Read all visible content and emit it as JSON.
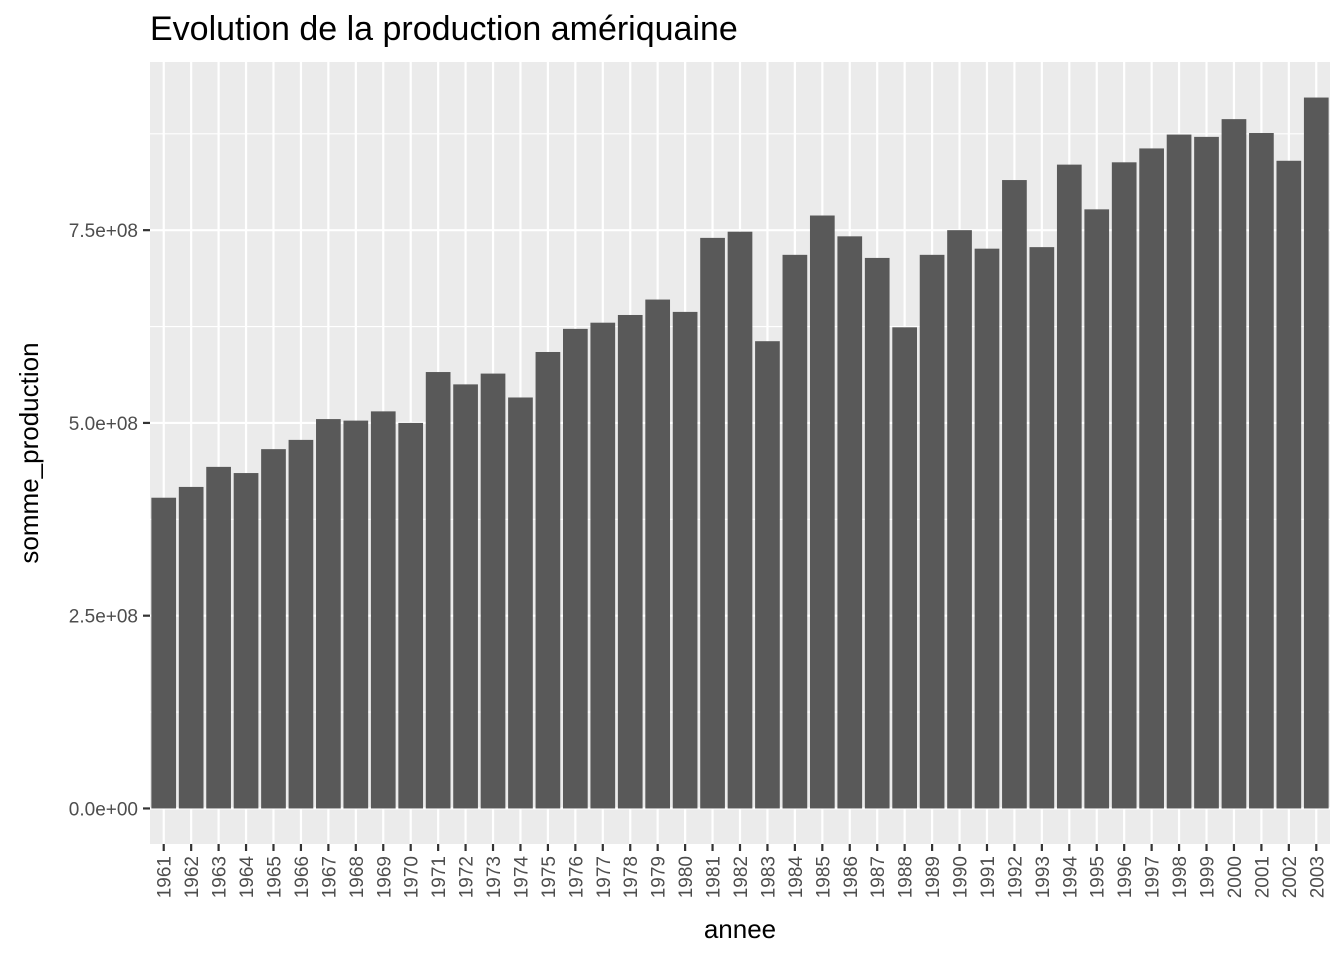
{
  "chart_data": {
    "type": "bar",
    "title": "Evolution de la production amériquaine",
    "xlabel": "annee",
    "ylabel": "somme_production",
    "categories": [
      "1961",
      "1962",
      "1963",
      "1964",
      "1965",
      "1966",
      "1967",
      "1968",
      "1969",
      "1970",
      "1971",
      "1972",
      "1973",
      "1974",
      "1975",
      "1976",
      "1977",
      "1978",
      "1979",
      "1980",
      "1981",
      "1982",
      "1983",
      "1984",
      "1985",
      "1986",
      "1987",
      "1988",
      "1989",
      "1990",
      "1991",
      "1992",
      "1993",
      "1994",
      "1995",
      "1996",
      "1997",
      "1998",
      "1999",
      "2000",
      "2001",
      "2002",
      "2003"
    ],
    "values": [
      403000000,
      417000000,
      443000000,
      435000000,
      466000000,
      478000000,
      505000000,
      503000000,
      515000000,
      500000000,
      566000000,
      550000000,
      564000000,
      533000000,
      592000000,
      622000000,
      630000000,
      640000000,
      660000000,
      644000000,
      740000000,
      748000000,
      606000000,
      718000000,
      769000000,
      742000000,
      714000000,
      624000000,
      718000000,
      750000000,
      726000000,
      815000000,
      728000000,
      835000000,
      777000000,
      838000000,
      856000000,
      874000000,
      871000000,
      894000000,
      876000000,
      840000000,
      922000000
    ],
    "yticks": [
      0,
      250000000,
      500000000,
      750000000
    ],
    "ytick_labels": [
      "0.0e+00",
      "2.5e+08",
      "5.0e+08",
      "7.5e+08"
    ],
    "ylim": [
      -46100000,
      968100000
    ],
    "grid": true,
    "legend": "none",
    "colors": {
      "bar": "#595959",
      "panel": "#ebebeb",
      "grid": "#ffffff",
      "tick": "#333333"
    }
  }
}
